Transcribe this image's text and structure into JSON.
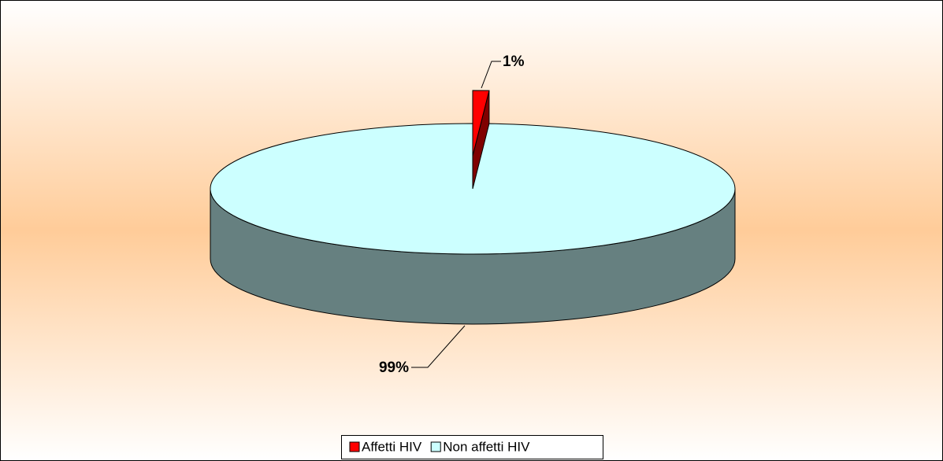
{
  "chart_data": {
    "type": "pie3d",
    "categories": [
      "Affetti HIV",
      "Non affetti HIV"
    ],
    "values": [
      1,
      99
    ],
    "value_labels": [
      "1%",
      "99%"
    ],
    "colors": [
      "#ff0000",
      "#ccffff"
    ],
    "legend": "bottom"
  }
}
